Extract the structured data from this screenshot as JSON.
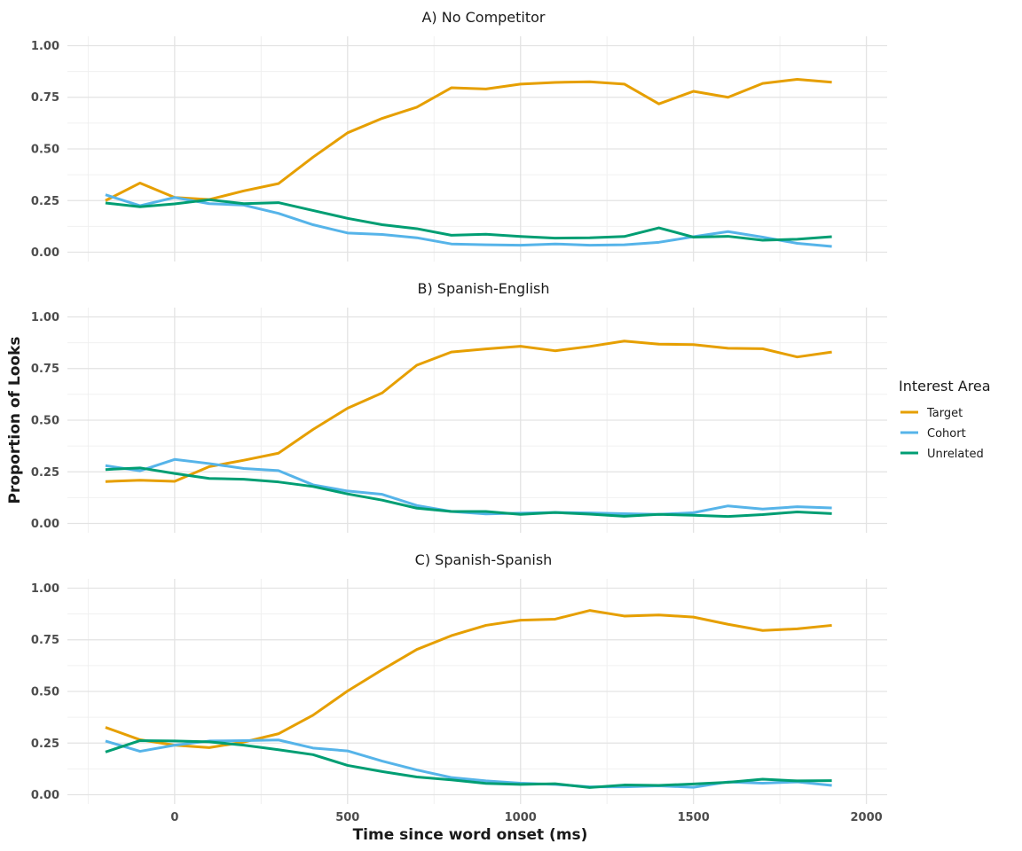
{
  "chart_data": {
    "type": "line",
    "xlabel": "Time since word onset (ms)",
    "ylabel": "Proportion of Looks",
    "xlim": [
      -310,
      2060
    ],
    "ylim": [
      -0.045,
      1.045
    ],
    "x_ticks": [
      0,
      500,
      1000,
      1500,
      2000
    ],
    "x_tick_labels": [
      "0",
      "500",
      "1000",
      "1500",
      "2000"
    ],
    "y_ticks": [
      0,
      0.25,
      0.5,
      0.75,
      1.0
    ],
    "y_tick_labels": [
      "0.00",
      "0.25",
      "0.50",
      "0.75",
      "1.00"
    ],
    "grid": true,
    "legend": {
      "title": "Interest Area",
      "placement": "right",
      "entries": [
        "Target",
        "Cohort",
        "Unrelated"
      ]
    },
    "colors": {
      "Target": "#E69F00",
      "Cohort": "#56B4E9",
      "Unrelated": "#009E73"
    },
    "x": [
      -200,
      -100,
      0,
      100,
      200,
      300,
      400,
      500,
      600,
      700,
      800,
      900,
      1000,
      1100,
      1200,
      1300,
      1400,
      1500,
      1600,
      1700,
      1800,
      1900
    ],
    "panels": [
      {
        "title": "A) No Competitor",
        "series": [
          {
            "name": "Target",
            "values": [
              0.25,
              0.335,
              0.265,
              0.255,
              0.297,
              0.332,
              0.46,
              0.578,
              0.648,
              0.702,
              0.796,
              0.79,
              0.814,
              0.822,
              0.825,
              0.814,
              0.718,
              0.779,
              0.75,
              0.817,
              0.837,
              0.823
            ]
          },
          {
            "name": "Cohort",
            "values": [
              0.278,
              0.225,
              0.265,
              0.235,
              0.228,
              0.188,
              0.133,
              0.093,
              0.086,
              0.07,
              0.04,
              0.036,
              0.034,
              0.04,
              0.034,
              0.036,
              0.048,
              0.075,
              0.1,
              0.073,
              0.043,
              0.028
            ]
          },
          {
            "name": "Unrelated",
            "values": [
              0.238,
              0.22,
              0.234,
              0.254,
              0.235,
              0.24,
              0.202,
              0.164,
              0.133,
              0.114,
              0.082,
              0.087,
              0.076,
              0.068,
              0.07,
              0.076,
              0.118,
              0.073,
              0.077,
              0.058,
              0.063,
              0.075
            ]
          }
        ]
      },
      {
        "title": "B) Spanish-English",
        "series": [
          {
            "name": "Target",
            "values": [
              0.203,
              0.209,
              0.204,
              0.275,
              0.306,
              0.34,
              0.455,
              0.558,
              0.632,
              0.766,
              0.83,
              0.845,
              0.858,
              0.836,
              0.857,
              0.883,
              0.868,
              0.866,
              0.848,
              0.846,
              0.806,
              0.83
            ]
          },
          {
            "name": "Cohort",
            "values": [
              0.28,
              0.255,
              0.31,
              0.29,
              0.266,
              0.256,
              0.187,
              0.157,
              0.141,
              0.087,
              0.058,
              0.046,
              0.05,
              0.053,
              0.051,
              0.047,
              0.044,
              0.052,
              0.085,
              0.07,
              0.081,
              0.075
            ]
          },
          {
            "name": "Unrelated",
            "values": [
              0.261,
              0.269,
              0.242,
              0.218,
              0.214,
              0.201,
              0.179,
              0.143,
              0.113,
              0.074,
              0.058,
              0.058,
              0.044,
              0.053,
              0.045,
              0.035,
              0.044,
              0.04,
              0.034,
              0.043,
              0.056,
              0.048
            ]
          }
        ]
      },
      {
        "title": "C) Spanish-Spanish",
        "series": [
          {
            "name": "Target",
            "values": [
              0.326,
              0.266,
              0.24,
              0.228,
              0.255,
              0.295,
              0.385,
              0.502,
              0.605,
              0.703,
              0.77,
              0.82,
              0.845,
              0.85,
              0.892,
              0.865,
              0.87,
              0.86,
              0.825,
              0.795,
              0.803,
              0.82
            ]
          },
          {
            "name": "Cohort",
            "values": [
              0.26,
              0.21,
              0.24,
              0.26,
              0.262,
              0.265,
              0.226,
              0.212,
              0.163,
              0.12,
              0.083,
              0.067,
              0.056,
              0.05,
              0.038,
              0.038,
              0.043,
              0.036,
              0.062,
              0.056,
              0.062,
              0.045
            ]
          },
          {
            "name": "Unrelated",
            "values": [
              0.207,
              0.262,
              0.26,
              0.256,
              0.24,
              0.218,
              0.194,
              0.142,
              0.112,
              0.086,
              0.072,
              0.055,
              0.05,
              0.053,
              0.035,
              0.047,
              0.045,
              0.052,
              0.06,
              0.075,
              0.067,
              0.068
            ]
          }
        ]
      }
    ]
  }
}
